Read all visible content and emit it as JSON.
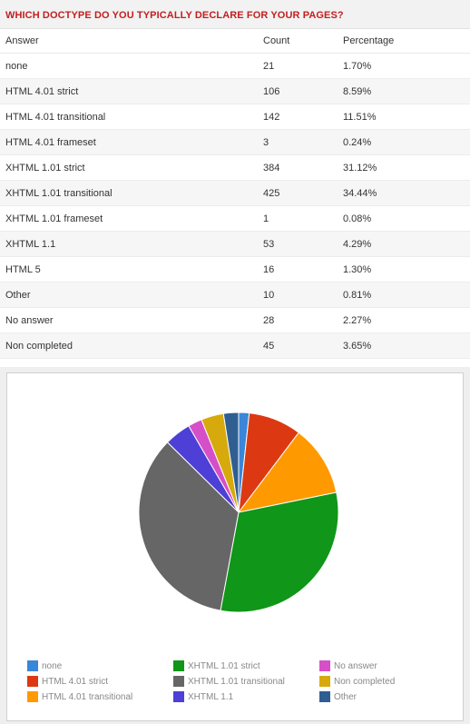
{
  "poll": {
    "title": "WHICH DOCTYPE DO YOU TYPICALLY DECLARE FOR YOUR PAGES?",
    "columns": [
      "Answer",
      "Count",
      "Percentage"
    ],
    "rows": [
      {
        "answer": "none",
        "count": "21",
        "percentage": "1.70%"
      },
      {
        "answer": "HTML 4.01 strict",
        "count": "106",
        "percentage": "8.59%"
      },
      {
        "answer": "HTML 4.01 transitional",
        "count": "142",
        "percentage": "11.51%"
      },
      {
        "answer": "HTML 4.01 frameset",
        "count": "3",
        "percentage": "0.24%"
      },
      {
        "answer": "XHTML 1.01 strict",
        "count": "384",
        "percentage": "31.12%"
      },
      {
        "answer": "XHTML 1.01 transitional",
        "count": "425",
        "percentage": "34.44%"
      },
      {
        "answer": "XHTML 1.01 frameset",
        "count": "1",
        "percentage": "0.08%"
      },
      {
        "answer": "XHTML 1.1",
        "count": "53",
        "percentage": "4.29%"
      },
      {
        "answer": "HTML 5",
        "count": "16",
        "percentage": "1.30%"
      },
      {
        "answer": "Other",
        "count": "10",
        "percentage": "0.81%"
      },
      {
        "answer": "No answer",
        "count": "28",
        "percentage": "2.27%"
      },
      {
        "answer": "Non completed",
        "count": "45",
        "percentage": "3.65%"
      }
    ]
  },
  "chart_data": {
    "type": "pie",
    "title": "",
    "legend_placement": "bottom",
    "slices": [
      {
        "name": "none",
        "value": 21,
        "color": "#3a86d8"
      },
      {
        "name": "HTML 4.01 strict",
        "value": 106,
        "color": "#dc3912"
      },
      {
        "name": "HTML 4.01 transitional",
        "value": 142,
        "color": "#ff9900"
      },
      {
        "name": "XHTML 1.01 strict",
        "value": 384,
        "color": "#109618"
      },
      {
        "name": "XHTML 1.01 transitional",
        "value": 425,
        "color": "#666666"
      },
      {
        "name": "XHTML 1.1",
        "value": 53,
        "color": "#4e3fd6"
      },
      {
        "name": "No answer",
        "value": 28,
        "color": "#d54fc8"
      },
      {
        "name": "Non completed",
        "value": 45,
        "color": "#d6aa0c"
      },
      {
        "name": "Other",
        "value": 30,
        "color": "#2f5f91"
      }
    ]
  }
}
